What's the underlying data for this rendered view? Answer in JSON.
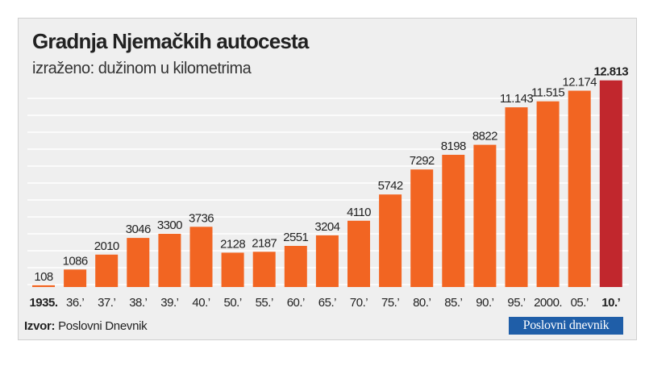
{
  "source": {
    "label": "Izvor:",
    "text": "Poslovni Dnevnik"
  },
  "logo": {
    "text": "Poslovni dnevnik"
  },
  "colors": {
    "bar": "#f26522",
    "highlight": "#c1272d",
    "background": "#efefef",
    "grid": "#ffffff"
  },
  "chart_data": {
    "type": "bar",
    "title": "Gradnja Njemačkih autocesta",
    "subtitle": "izraženo: dužinom u kilometrima",
    "xlabel": "",
    "ylabel": "",
    "ylim": [
      0,
      13000
    ],
    "grid": true,
    "categories": [
      "1935.",
      "36.’",
      "37.’",
      "38.’",
      "39.’",
      "40.’",
      "50.’",
      "55.’",
      "60.’",
      "65.’",
      "70.’",
      "75.’",
      "80.’",
      "85.’",
      "90.’",
      "95.’",
      "2000.",
      "05.’",
      "10.’"
    ],
    "values": [
      108,
      1086,
      2010,
      3046,
      3300,
      3736,
      2128,
      2187,
      2551,
      3204,
      4110,
      5742,
      7292,
      8198,
      8822,
      11143,
      11515,
      12174,
      12813
    ],
    "value_labels": [
      "108",
      "1086",
      "2010",
      "3046",
      "3300",
      "3736",
      "2128",
      "2187",
      "2551",
      "3204",
      "4110",
      "5742",
      "7292",
      "8198",
      "8822",
      "11.143",
      "11.515",
      "12.174",
      "12.813"
    ],
    "highlight_index": 18,
    "bold_indices": [
      0,
      18
    ]
  }
}
